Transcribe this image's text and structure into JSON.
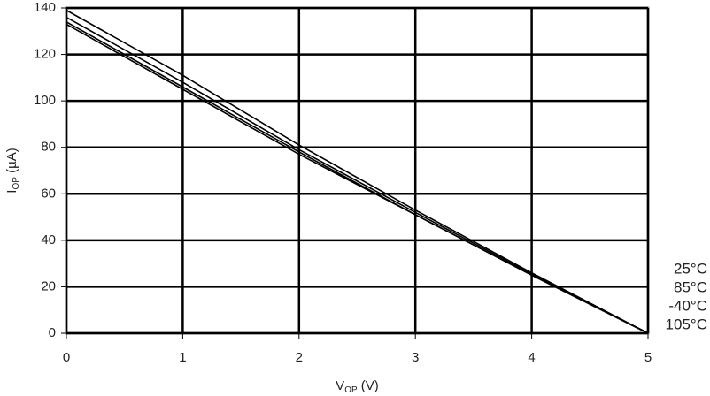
{
  "chart_data": {
    "type": "line",
    "xlabel": [
      "V",
      "OP",
      " (V)"
    ],
    "ylabel": [
      "I",
      "OP",
      " (µA)"
    ],
    "x": [
      0,
      1,
      2,
      3,
      4,
      5
    ],
    "series": [
      {
        "name": "25°C",
        "color": "#000000",
        "values": [
          139,
          111,
          81,
          53,
          26,
          0
        ]
      },
      {
        "name": "85°C",
        "color": "#000000",
        "values": [
          136,
          108,
          79,
          52,
          25.5,
          0
        ]
      },
      {
        "name": "-40°C",
        "color": "#000000",
        "values": [
          134,
          106,
          78,
          51,
          25,
          0
        ]
      },
      {
        "name": "105°C",
        "color": "#000000",
        "values": [
          133,
          105,
          77,
          51,
          25,
          0
        ]
      }
    ],
    "xlim": [
      0,
      5
    ],
    "xticks": [
      0,
      1,
      2,
      3,
      4,
      5
    ],
    "ylim": [
      0,
      140
    ],
    "yticks": [
      0,
      20,
      40,
      60,
      80,
      100,
      120,
      140
    ],
    "grid": true,
    "legend": "right"
  }
}
